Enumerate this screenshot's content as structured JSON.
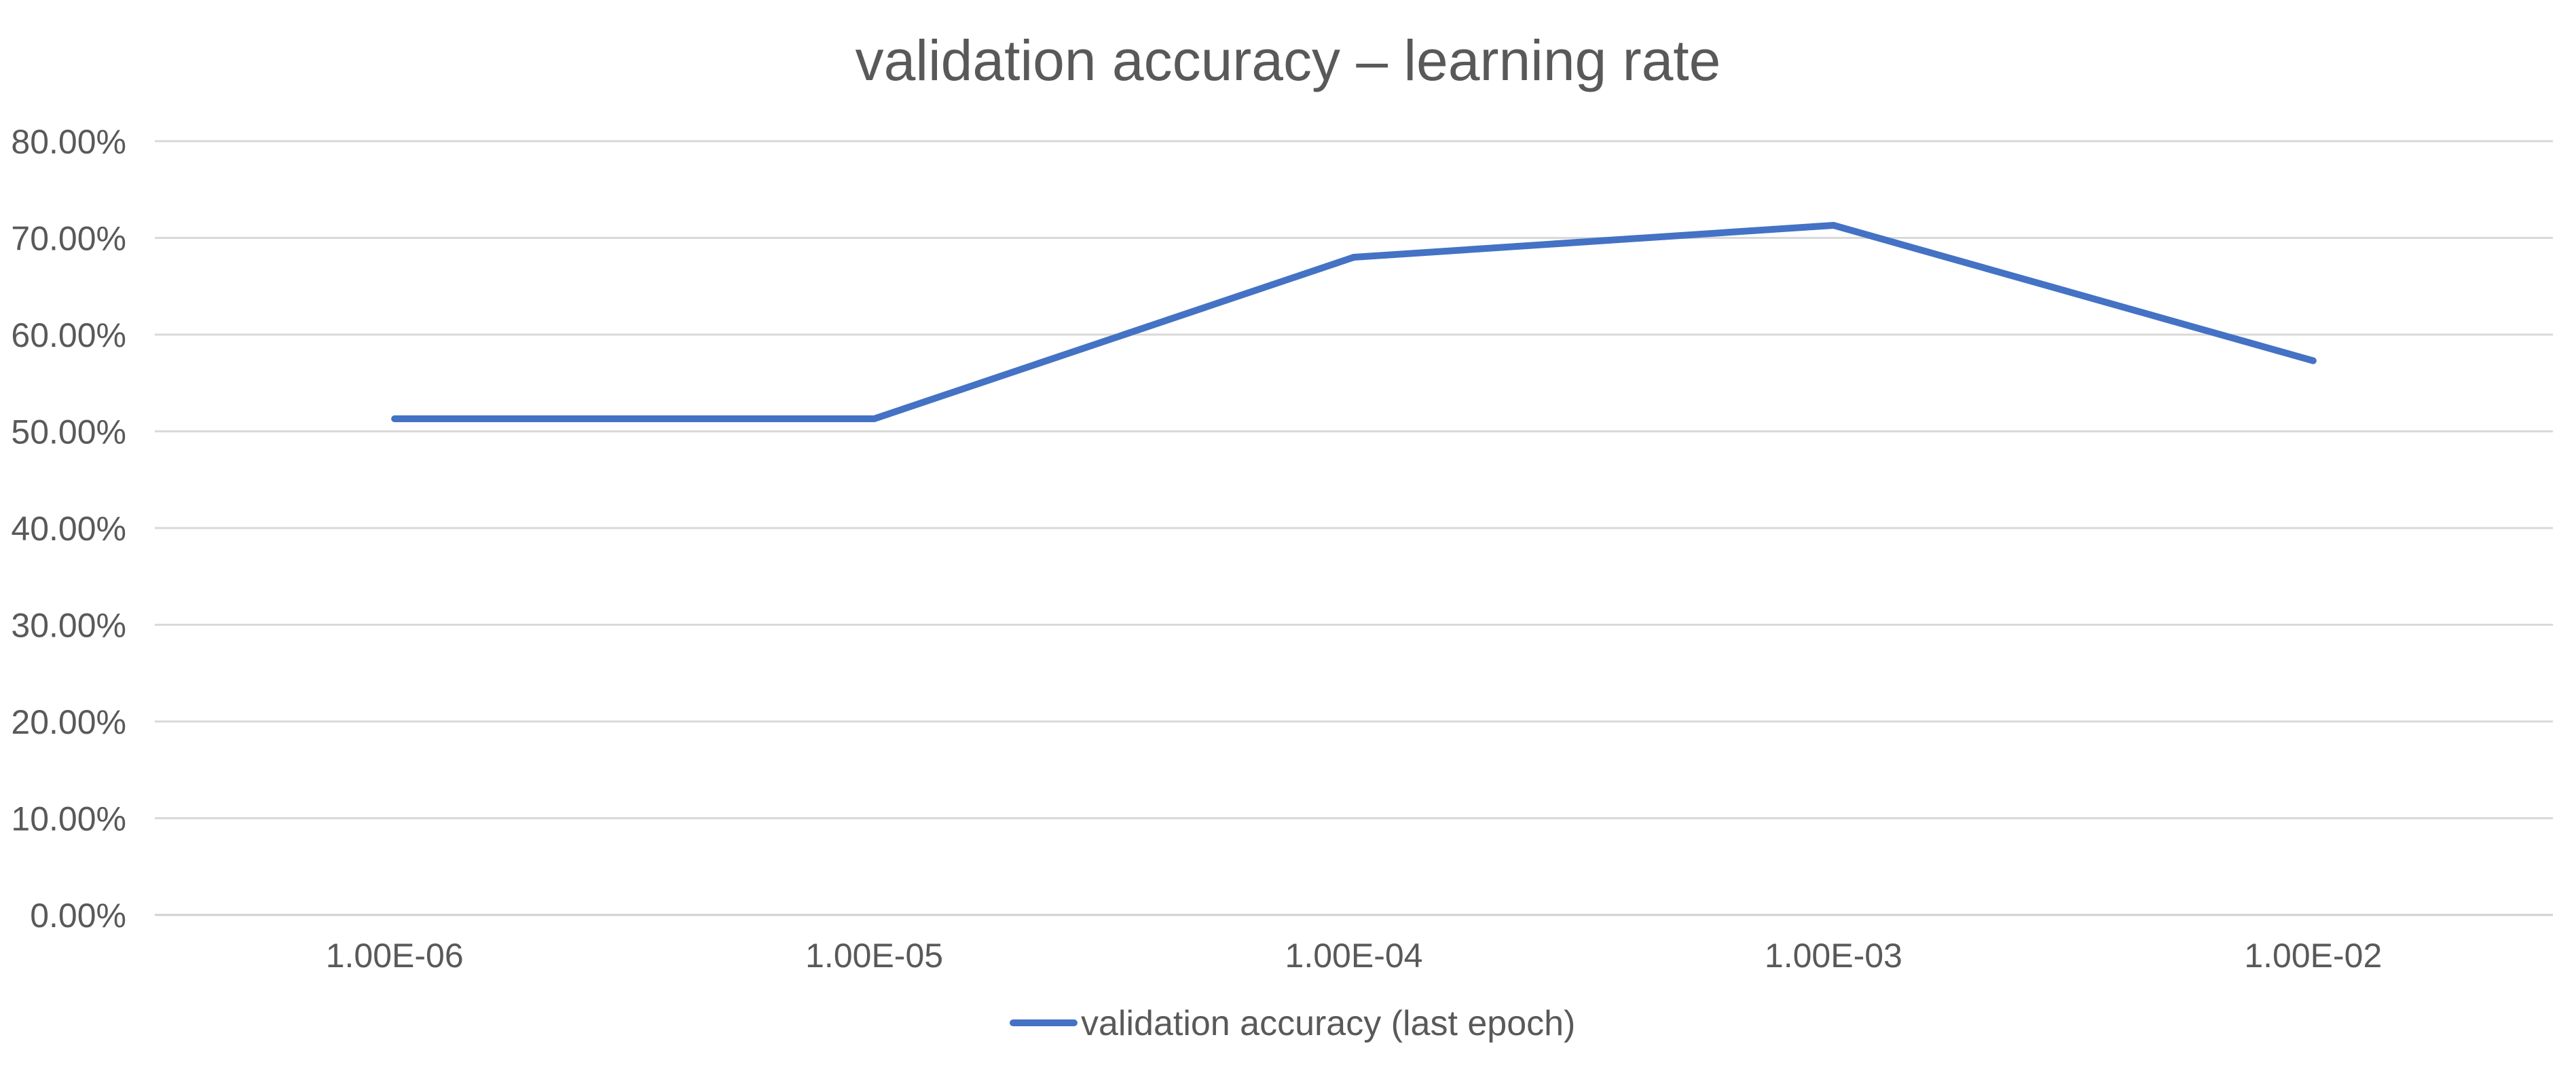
{
  "chart_data": {
    "type": "line",
    "title": "validation accuracy – learning rate",
    "xlabel": "",
    "ylabel": "",
    "categories": [
      "1.00E-06",
      "1.00E-05",
      "1.00E-04",
      "1.00E-03",
      "1.00E-02"
    ],
    "series": [
      {
        "name": "validation accuracy (last epoch)",
        "values": [
          0.513,
          0.513,
          0.68,
          0.713,
          0.573
        ],
        "color": "#4472c4"
      }
    ],
    "ylim": [
      0,
      0.8
    ],
    "yticks": [
      "0.00%",
      "10.00%",
      "20.00%",
      "30.00%",
      "40.00%",
      "50.00%",
      "60.00%",
      "70.00%",
      "80.00%"
    ],
    "grid": true,
    "legend": "bottom"
  }
}
